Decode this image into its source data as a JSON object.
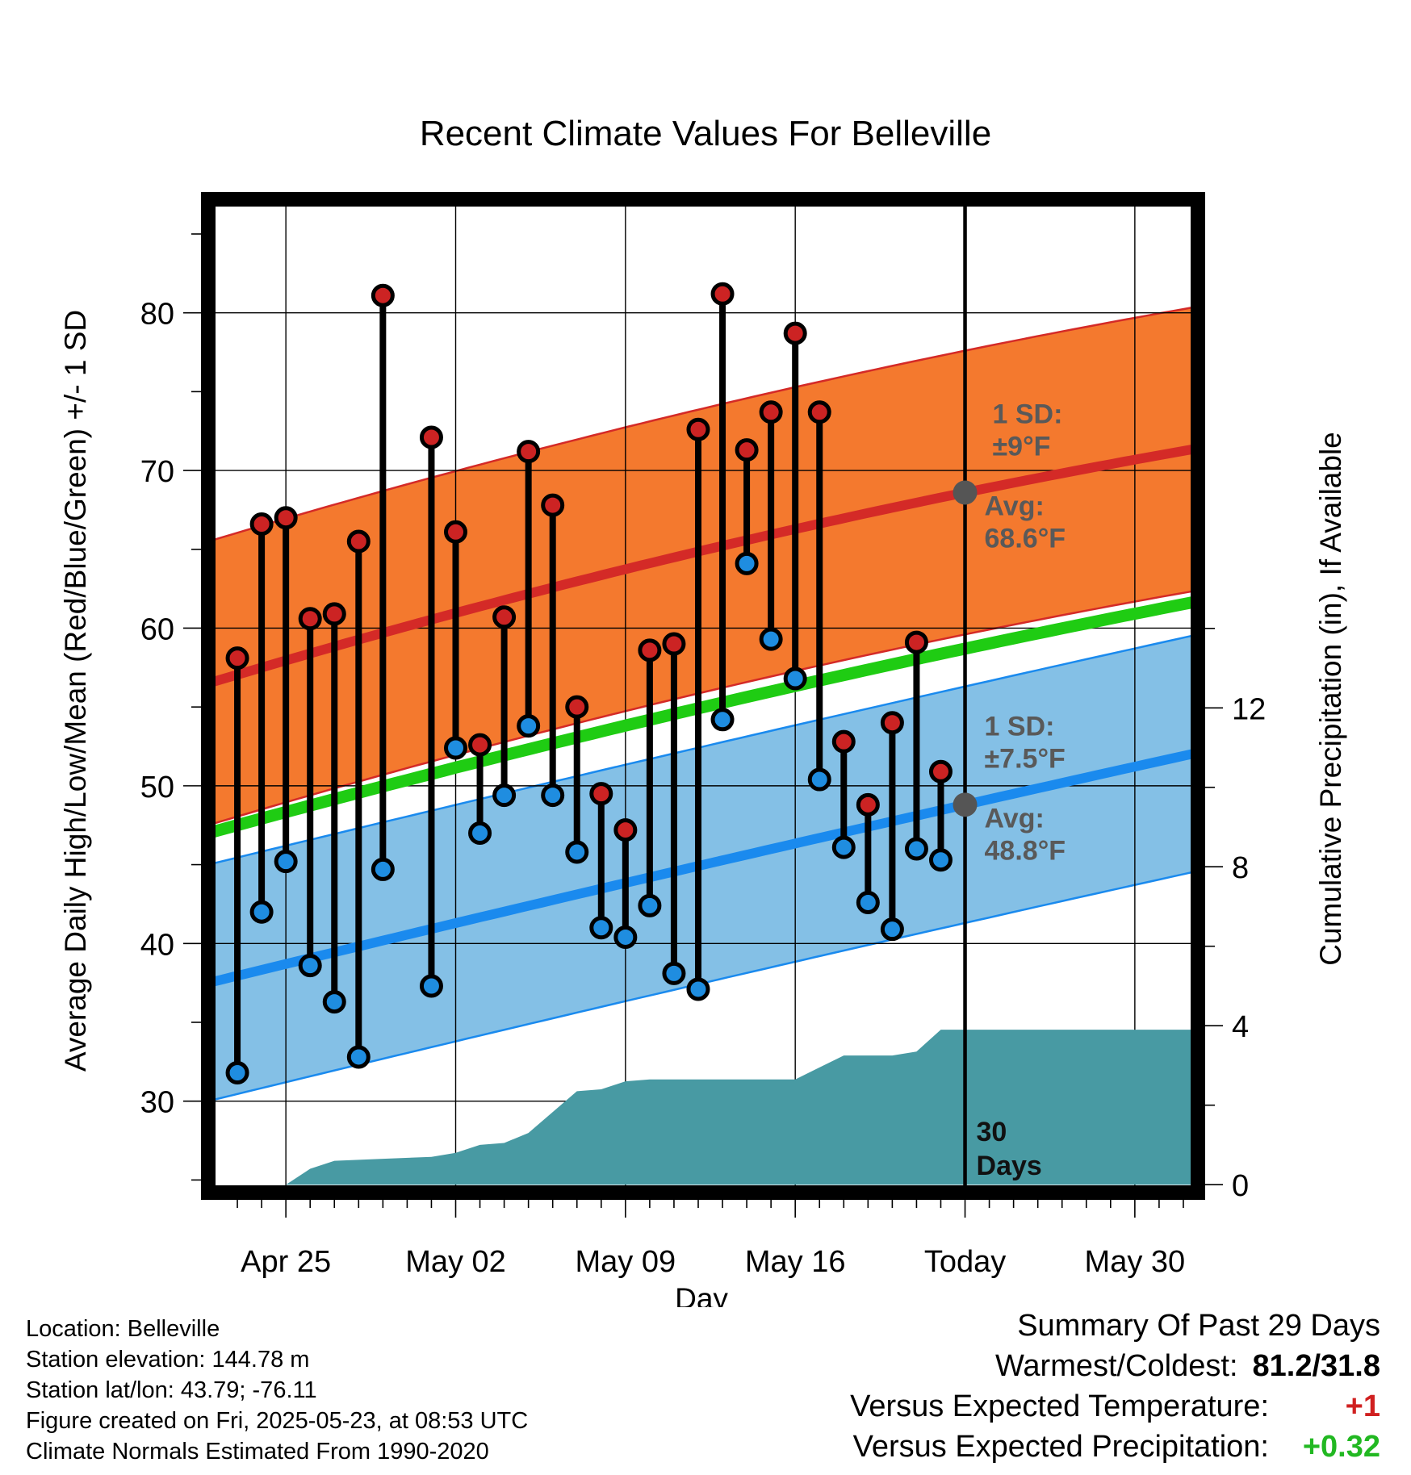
{
  "chart_data": {
    "type": "line",
    "title": "Recent Climate Values For Belleville",
    "xlabel": "Day",
    "ylabel": "Average Daily High/Low/Mean (Red/Blue/Green) +/- 1 SD",
    "y2label": "Cumulative Precipitation (in), If Available",
    "x_tick_labels": [
      "Apr 25",
      "May 02",
      "May 09",
      "May 16",
      "Today",
      "May 30"
    ],
    "x_tick_days": [
      -28,
      -21,
      -14,
      -7,
      0,
      7
    ],
    "xlim_days": [
      -31.2,
      9.6
    ],
    "y_ticks": [
      30,
      40,
      50,
      60,
      70,
      80
    ],
    "ylim": [
      24.2,
      87.2
    ],
    "y2_ticks": [
      0,
      4,
      8,
      12
    ],
    "y2lim": [
      -0.2,
      24.8
    ],
    "normal_high": {
      "start": 56.5,
      "today": 68.6,
      "end": 71.4,
      "sd": 9
    },
    "normal_low": {
      "start": 37.5,
      "today": 48.8,
      "end": 52.1,
      "sd": 7.5
    },
    "normal_mean": {
      "start": 47.0,
      "today": 58.7,
      "end": 61.7
    },
    "daily": [
      {
        "day": -30,
        "high": 58.1,
        "low": 31.8
      },
      {
        "day": -29,
        "high": 66.6,
        "low": 42.0
      },
      {
        "day": -28,
        "high": 67.0,
        "low": 45.2
      },
      {
        "day": -27,
        "high": 60.6,
        "low": 38.6
      },
      {
        "day": -26,
        "high": 60.9,
        "low": 36.3
      },
      {
        "day": -25,
        "high": 65.5,
        "low": 32.8
      },
      {
        "day": -24,
        "high": 81.1,
        "low": 44.7
      },
      {
        "day": -22,
        "high": 72.1,
        "low": 37.3
      },
      {
        "day": -21,
        "high": 66.1,
        "low": 52.4
      },
      {
        "day": -20,
        "high": 52.6,
        "low": 47.0
      },
      {
        "day": -19,
        "high": 60.7,
        "low": 49.4
      },
      {
        "day": -18,
        "high": 71.2,
        "low": 53.8
      },
      {
        "day": -17,
        "high": 67.8,
        "low": 49.4
      },
      {
        "day": -16,
        "high": 55.0,
        "low": 45.8
      },
      {
        "day": -15,
        "high": 49.5,
        "low": 41.0
      },
      {
        "day": -14,
        "high": 47.2,
        "low": 40.4
      },
      {
        "day": -13,
        "high": 58.6,
        "low": 42.4
      },
      {
        "day": -12,
        "high": 59.0,
        "low": 38.1
      },
      {
        "day": -11,
        "high": 72.6,
        "low": 37.1
      },
      {
        "day": -10,
        "high": 81.2,
        "low": 54.2
      },
      {
        "day": -9,
        "high": 71.3,
        "low": 64.1
      },
      {
        "day": -8,
        "high": 73.7,
        "low": 59.3
      },
      {
        "day": -7,
        "high": 78.7,
        "low": 56.8
      },
      {
        "day": -6,
        "high": 73.7,
        "low": 50.4
      },
      {
        "day": -5,
        "high": 52.8,
        "low": 46.1
      },
      {
        "day": -4,
        "high": 48.8,
        "low": 42.6
      },
      {
        "day": -3,
        "high": 54.0,
        "low": 40.9
      },
      {
        "day": -2,
        "high": 59.1,
        "low": 46.0
      },
      {
        "day": -1,
        "high": 50.9,
        "low": 45.3
      }
    ],
    "precip_cumulative": [
      {
        "day": -31,
        "value": 0
      },
      {
        "day": -28,
        "value": 0
      },
      {
        "day": -27,
        "value": 0.4
      },
      {
        "day": -26,
        "value": 0.6
      },
      {
        "day": -24,
        "value": 0.65
      },
      {
        "day": -22,
        "value": 0.7
      },
      {
        "day": -21,
        "value": 0.8
      },
      {
        "day": -20,
        "value": 1.0
      },
      {
        "day": -19,
        "value": 1.05
      },
      {
        "day": -18,
        "value": 1.3
      },
      {
        "day": -16,
        "value": 2.35
      },
      {
        "day": -15,
        "value": 2.4
      },
      {
        "day": -14,
        "value": 2.6
      },
      {
        "day": -13,
        "value": 2.65
      },
      {
        "day": -7,
        "value": 2.65
      },
      {
        "day": -5,
        "value": 3.25
      },
      {
        "day": -3,
        "value": 3.25
      },
      {
        "day": -2,
        "value": 3.35
      },
      {
        "day": -1,
        "value": 3.9
      },
      {
        "day": 9.5,
        "value": 3.9
      }
    ],
    "annotations": {
      "high_sd_label": "1 SD:",
      "high_sd_value": "±9°F",
      "high_avg_label": "Avg:",
      "high_avg_value": "68.6°F",
      "low_sd_label": "1 SD:",
      "low_sd_value": "±7.5°F",
      "low_avg_label": "Avg:",
      "low_avg_value": "48.8°F",
      "days_number": "30",
      "days_word": "Days"
    },
    "colors": {
      "high_band": "#f4792e",
      "high_line": "#d42a27",
      "low_band": "#84c0e6",
      "low_line": "#1a8aee",
      "mean_line": "#1fcc13",
      "precip": "#489aa3",
      "high_dot": "#cc2323",
      "low_dot": "#1f8de0"
    }
  },
  "info": {
    "location": "Location: Belleville",
    "elevation": "Station elevation: 144.78 m",
    "latlon": "Station lat/lon: 43.79; -76.11",
    "created": "Figure created on Fri, 2025-05-23, at 08:53 UTC",
    "normals": "Climate Normals Estimated From 1990-2020"
  },
  "summary": {
    "title": "Summary Of Past 29 Days",
    "warm_cold_label": "Warmest/Coldest:",
    "warm_cold_value": "81.2/31.8",
    "temp_label": "Versus Expected Temperature:",
    "temp_value": "+1",
    "temp_color": "#d02020",
    "precip_label": "Versus Expected Precipitation:",
    "precip_value": "+0.32",
    "precip_color": "#22b822"
  }
}
